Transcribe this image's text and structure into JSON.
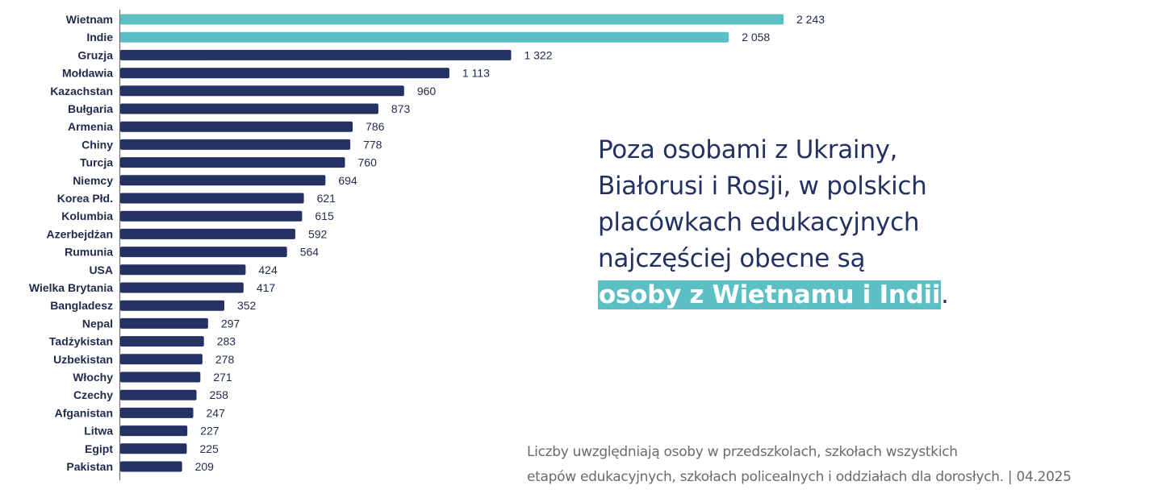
{
  "chart_data": {
    "type": "bar",
    "orientation": "horizontal",
    "categories": [
      "Wietnam",
      "Indie",
      "Gruzja",
      "Mołdawia",
      "Kazachstan",
      "Bułgaria",
      "Armenia",
      "Chiny",
      "Turcja",
      "Niemcy",
      "Korea Płd.",
      "Kolumbia",
      "Azerbejdżan",
      "Rumunia",
      "USA",
      "Wielka Brytania",
      "Bangladesz",
      "Nepal",
      "Tadżykistan",
      "Uzbekistan",
      "Włochy",
      "Czechy",
      "Afganistan",
      "Litwa",
      "Egipt",
      "Pakistan"
    ],
    "values": [
      2243,
      2058,
      1322,
      1113,
      960,
      873,
      786,
      778,
      760,
      694,
      621,
      615,
      592,
      564,
      424,
      417,
      352,
      297,
      283,
      278,
      271,
      258,
      247,
      227,
      225,
      209
    ],
    "value_labels": [
      "2 243",
      "2 058",
      "1 322",
      "1 113",
      "960",
      "873",
      "786",
      "778",
      "760",
      "694",
      "621",
      "615",
      "592",
      "564",
      "424",
      "417",
      "352",
      "297",
      "283",
      "278",
      "271",
      "258",
      "247",
      "227",
      "225",
      "209"
    ],
    "highlighted": [
      "Wietnam",
      "Indie"
    ],
    "xlim": [
      0,
      2243
    ],
    "grid": false,
    "legend": "none"
  },
  "colors": {
    "bar": "#233262",
    "bar_highlight": "#5bbfc4",
    "axis": "#6b6b6b",
    "headline_text": "#233262",
    "footnote_text": "#6b6b6b"
  },
  "headline": {
    "line1": "Poza osobami z Ukrainy,",
    "line2": "Białorusi i Rosji, w polskich",
    "line3": "placówkach edukacyjnych",
    "line4": "najczęściej obecne są",
    "highlight": "osoby z Wietnamu i Indii",
    "end": "."
  },
  "footnote": {
    "line1": "Liczby uwzględniają osoby w przedszkolach, szkołach wszystkich",
    "line2": "etapów edukacyjnych, szkołach policealnych i oddziałach dla dorosłych. | 04.2025"
  }
}
